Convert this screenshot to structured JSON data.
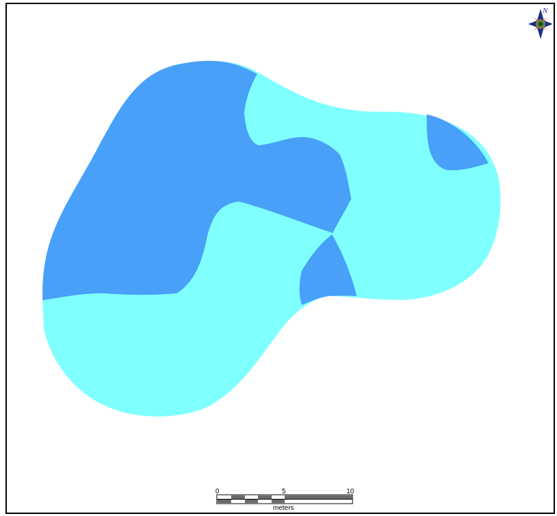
{
  "map": {
    "colors": {
      "zone_dark": "#48a0f8",
      "zone_light": "#80ffff",
      "frame": "#000000",
      "background": "#ffffff"
    },
    "zones": [
      {
        "name": "dark-zone",
        "color": "#48a0f8"
      },
      {
        "name": "light-zone",
        "color": "#80ffff"
      }
    ],
    "north_arrow": {
      "letter": "N",
      "icon": "compass-rose-icon"
    },
    "scale_bar": {
      "ticks": [
        "0",
        "5",
        "10"
      ],
      "unit": "meters"
    }
  }
}
